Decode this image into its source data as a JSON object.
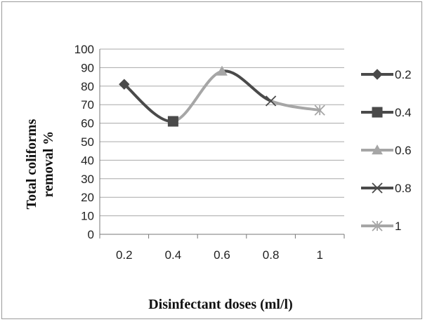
{
  "chart_data": {
    "type": "line",
    "x": [
      0.2,
      0.4,
      0.6,
      0.8,
      1
    ],
    "categories": [
      "0.2",
      "0.4",
      "0.6",
      "0.8",
      "1"
    ],
    "y": [
      81,
      61,
      88,
      72,
      67
    ],
    "xlabel": "Disinfectant doses (ml/l)",
    "ylabel_lines": [
      "Total coliforms",
      "removal %"
    ],
    "ylim": [
      0,
      100
    ],
    "yticks": [
      0,
      10,
      20,
      30,
      40,
      50,
      60,
      70,
      80,
      90,
      100
    ],
    "grid": true,
    "smooth": true,
    "legend_position": "right",
    "legend": [
      {
        "label": "0.2",
        "marker": "diamond",
        "color": "#4a4a4a"
      },
      {
        "label": "0.4",
        "marker": "square",
        "color": "#4a4a4a"
      },
      {
        "label": "0.6",
        "marker": "triangle",
        "color": "#a6a6a6"
      },
      {
        "label": "0.8",
        "marker": "x",
        "color": "#4a4a4a"
      },
      {
        "label": "1",
        "marker": "star",
        "color": "#a6a6a6"
      }
    ],
    "segment_colors": [
      "#4a4a4a",
      "#a6a6a6",
      "#4a4a4a",
      "#a6a6a6"
    ]
  }
}
